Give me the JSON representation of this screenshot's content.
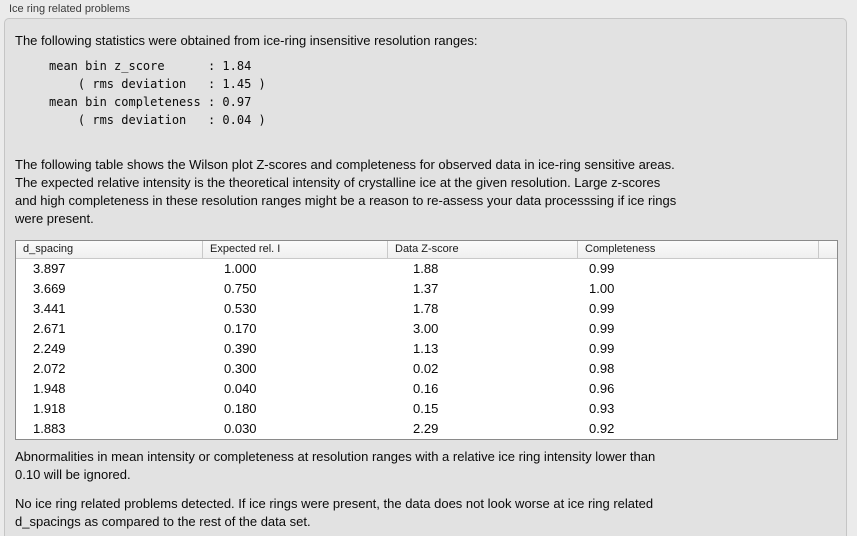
{
  "panel": {
    "title": "Ice ring related problems"
  },
  "colors": {
    "page_background": "#ebebeb",
    "groupbox_background": "#e2e2e2",
    "groupbox_border": "#c5c5c5",
    "table_background": "#ffffff",
    "table_border": "#8a8a8a"
  },
  "intro": {
    "text": "The following statistics were obtained from ice-ring insensitive resolution ranges:",
    "stats_block": "mean bin z_score      : 1.84\n    ( rms deviation   : 1.45 )\nmean bin completeness : 0.97\n    ( rms deviation   : 0.04 )",
    "stats": {
      "mean_bin_z_score": "1.84",
      "z_score_rms_deviation": "1.45",
      "mean_bin_completeness": "0.97",
      "completeness_rms_deviation": "0.04"
    }
  },
  "description": "The following table shows the Wilson plot Z-scores and completeness for observed data in ice-ring sensitive areas.\nThe expected relative intensity is the theoretical intensity of crystalline ice at the given resolution. Large z-scores\nand high completeness in these resolution ranges might be a reason to re-assess your data processsing if ice rings\nwere present.",
  "table": {
    "columns": [
      "d_spacing",
      "Expected rel. I",
      "Data Z-score",
      "Completeness"
    ],
    "rows": [
      [
        "3.897",
        "1.000",
        "1.88",
        "0.99"
      ],
      [
        "3.669",
        "0.750",
        "1.37",
        "1.00"
      ],
      [
        "3.441",
        "0.530",
        "1.78",
        "0.99"
      ],
      [
        "2.671",
        "0.170",
        "3.00",
        "0.99"
      ],
      [
        "2.249",
        "0.390",
        "1.13",
        "0.99"
      ],
      [
        "2.072",
        "0.300",
        "0.02",
        "0.98"
      ],
      [
        "1.948",
        "0.040",
        "0.16",
        "0.96"
      ],
      [
        "1.918",
        "0.180",
        "0.15",
        "0.93"
      ],
      [
        "1.883",
        "0.030",
        "2.29",
        "0.92"
      ]
    ]
  },
  "notes": {
    "ignore_note": "Abnormalities in mean intensity or completeness at resolution ranges with a relative ice ring intensity lower than\n0.10 will be ignored.",
    "conclusion": "No ice ring related problems detected. If ice rings were present, the data does not look worse at ice ring related\nd_spacings as compared to the rest of the data set."
  }
}
